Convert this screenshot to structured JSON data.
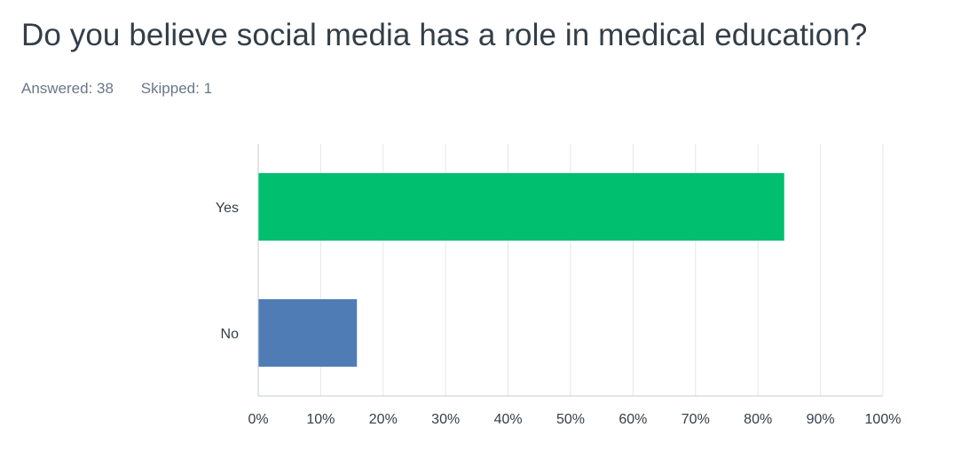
{
  "question": {
    "title": "Do you believe social media has a role in medical education?",
    "answered_label": "Answered: 38",
    "skipped_label": "Skipped: 1"
  },
  "chart_data": {
    "type": "bar",
    "orientation": "horizontal",
    "categories": [
      "Yes",
      "No"
    ],
    "values": [
      84.2,
      15.8
    ],
    "unit": "%",
    "xlim": [
      0,
      100
    ],
    "x_ticks": [
      "0%",
      "10%",
      "20%",
      "30%",
      "40%",
      "50%",
      "60%",
      "70%",
      "80%",
      "90%",
      "100%"
    ],
    "colors": [
      "#00bf6f",
      "#507cb6"
    ],
    "grid": true,
    "legend": "none"
  }
}
